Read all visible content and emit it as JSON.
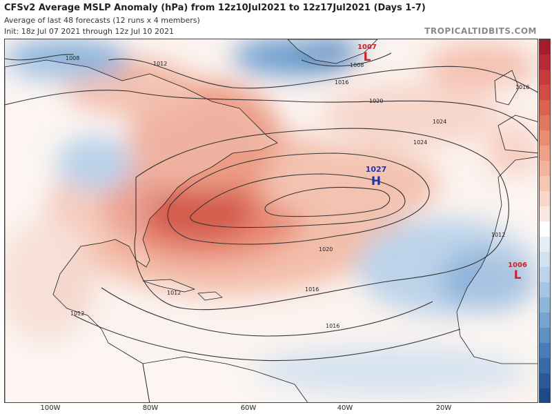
{
  "header": {
    "title": "CFSv2 Average MSLP Anomaly (hPa) from 12z10Jul2021 to 12z17Jul2021 (Days 1-7)",
    "subtitle_line1": "Average of last 48 forecasts (12 runs x 4 members)",
    "subtitle_line2": "Init: 18z Jul 07 2021 through 12z Jul 10 2021",
    "brand": "TROPICALTIDBITS.COM"
  },
  "map": {
    "contour_labels": [
      "1008",
      "1012",
      "1016",
      "1020",
      "1024",
      "1024",
      "1020",
      "1016",
      "1016",
      "1012",
      "1012",
      "1016",
      "1008",
      "1012"
    ],
    "pressure_centers": [
      {
        "value": "1007",
        "letter": "L",
        "color": "#cc2222"
      },
      {
        "value": "1027",
        "letter": "H",
        "color": "#2233aa"
      },
      {
        "value": "1006",
        "letter": "L",
        "color": "#cc2222"
      }
    ]
  },
  "x_axis": {
    "ticks": [
      "100W",
      "80W",
      "60W",
      "40W",
      "20W"
    ]
  },
  "colors": {
    "positive_anomaly": "#d6554a",
    "negative_anomaly": "#5b8ec4",
    "contour": "#333333"
  }
}
